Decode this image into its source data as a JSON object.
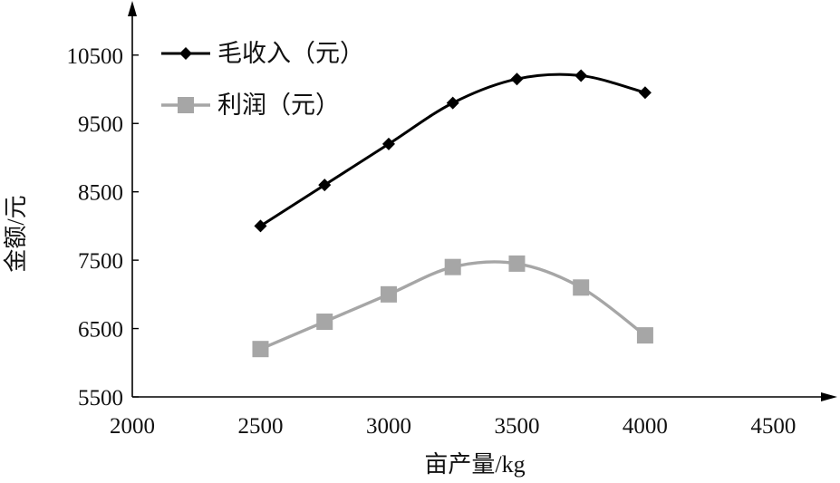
{
  "chart_data": {
    "type": "line",
    "title": "",
    "xlabel": "亩产量/kg",
    "ylabel": "金额/元",
    "xlim": [
      2000,
      4700
    ],
    "ylim": [
      5500,
      11200
    ],
    "xticks": [
      2000,
      2500,
      3000,
      3500,
      4000,
      4500
    ],
    "yticks": [
      5500,
      6500,
      7500,
      8500,
      9500,
      10500
    ],
    "grid": false,
    "legend_position": "top-left",
    "x": [
      2500,
      2750,
      3000,
      3250,
      3500,
      3750,
      4000
    ],
    "series": [
      {
        "name": "毛收入（元）",
        "values": [
          8000,
          8600,
          9200,
          9800,
          10150,
          10200,
          9950
        ],
        "color": "#000000",
        "marker": "diamond"
      },
      {
        "name": "利润（元）",
        "values": [
          6200,
          6600,
          7000,
          7400,
          7450,
          7100,
          6400
        ],
        "color": "#a6a6a6",
        "marker": "square"
      }
    ]
  }
}
